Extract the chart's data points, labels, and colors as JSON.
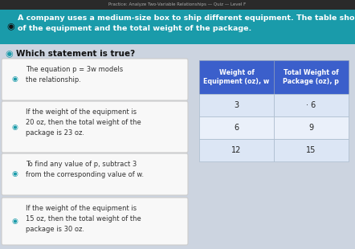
{
  "title_bar_text": "Practice: Analyze Two-Variable Relationships — Quiz — Level F",
  "title_bar_bg": "#1a9baa",
  "title_bar_text_color": "#ffffff",
  "question_prefix": "A company uses a medium-size box to ship different equipment. The table shows the weight\nof the equipment and the total weight of the package.",
  "question2": "Which statement is true?",
  "bg_color": "#ccd4e0",
  "options": [
    "The equation p = 3w models\nthe relationship.",
    "If the weight of the equipment is\n20 oz, then the total weight of the\npackage is 23 oz.",
    "To find any value of p, subtract 3\nfrom the corresponding value of w.",
    "If the weight of the equipment is\n15 oz, then the total weight of the\npackage is 30 oz."
  ],
  "option_bg": "#f8f8f8",
  "option_border": "#cccccc",
  "table_header_bg": "#3b5fcb",
  "table_header_text": "#ffffff",
  "table_row_bg1": "#dce6f5",
  "table_row_bg2": "#eaf0fa",
  "table_col1_header": "Weight of\nEquipment (oz), w",
  "table_col2_header": "Total Weight of\nPackage (oz), p",
  "table_data": [
    [
      3,
      "· 6"
    ],
    [
      6,
      9
    ],
    [
      12,
      15
    ]
  ],
  "speaker_color": "#1a9baa",
  "font_family": "DejaVu Sans"
}
